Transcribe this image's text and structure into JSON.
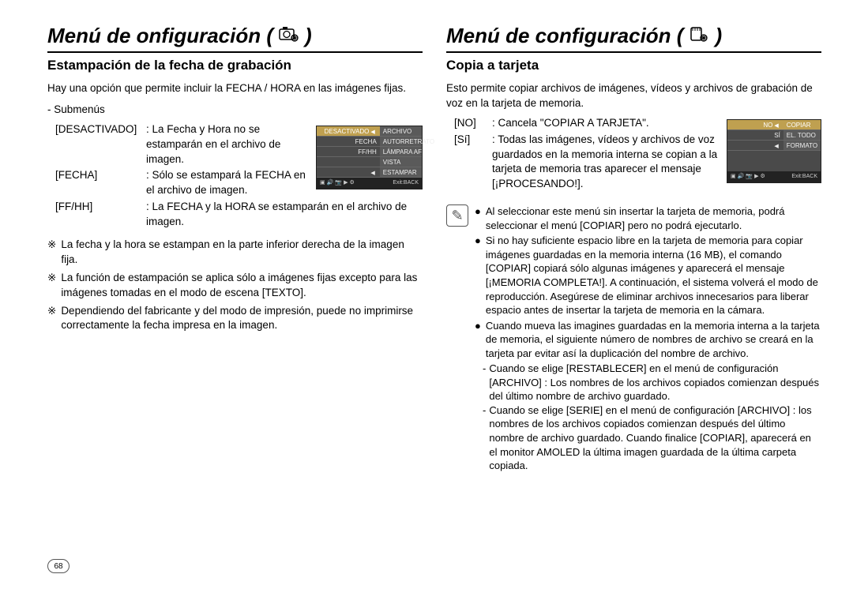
{
  "pageNumber": "68",
  "left": {
    "title_a": "Menú de onfiguración (",
    "title_b": ")",
    "subtitle": "Estampación de la fecha de grabación",
    "intro": "Hay una opción que permite incluir la FECHA / HORA en las imágenes fijas.",
    "submenus_label": "- Submenús",
    "defs": [
      {
        "k": "[DESACTIVADO]",
        "v": ": La Fecha y Hora no se estamparán en el archivo de imagen."
      },
      {
        "k": "[FECHA]",
        "v": ": Sólo se estampará la FECHA en el archivo de imagen."
      },
      {
        "k": "[FF/HH]",
        "v": ": La FECHA y la HORA se estamparán en el archivo de imagen."
      }
    ],
    "notes": [
      "La fecha y la hora se estampan en la parte inferior derecha de la imagen fija.",
      "La función de estampación se aplica sólo a imágenes fijas excepto para las imágenes tomadas en el modo de escena [TEXTO].",
      "Dependiendo del fabricante y del modo de impresión, puede no imprimirse correctamente la fecha impresa en la imagen."
    ],
    "screenshot": {
      "left_items": [
        "DESACTIVADO",
        "FECHA",
        "FF/HH",
        "",
        ""
      ],
      "right_items": [
        "ARCHIVO",
        "AUTORRETRATO",
        "LÁMPARA AF",
        "VISTA RÁPIDA",
        "ESTAMPAR"
      ],
      "left_sel_index": 0,
      "right_sel_index": -1,
      "foot_right": "Exit:BACK"
    }
  },
  "right": {
    "title_a": "Menú de configuración (",
    "title_b": ")",
    "subtitle": "Copia a tarjeta",
    "intro": "Esto permite copiar archivos de imágenes, vídeos y archivos de grabación de voz en la tarjeta de memoria.",
    "defs": [
      {
        "k": "[NO]",
        "v": ": Cancela \"COPIAR A TARJETA\"."
      },
      {
        "k": "[Sí]",
        "v": ": Todas las imágenes, vídeos y archivos de voz guardados en la memoria interna se copian a la tarjeta de memoria tras aparecer el mensaje [¡PROCESANDO!]."
      }
    ],
    "screenshot": {
      "left_items": [
        "NO",
        "SÍ",
        ""
      ],
      "right_items": [
        "COPIAR",
        "EL. TODO",
        "FORMATO"
      ],
      "left_sel_index": 0,
      "right_sel_index": 0,
      "foot_right": "Exit:BACK"
    },
    "notes": [
      "Al seleccionar este menú sin insertar la tarjeta de memoria, podrá seleccionar el menú [COPIAR]  pero no podrá ejecutarlo.",
      "Si no hay suficiente espacio libre en la tarjeta de memoria para copiar imágenes guardadas en la memoria interna (16 MB), el comando [COPIAR] copiará sólo algunas imágenes y aparecerá el mensaje [¡MEMORIA COMPLETA!]. A continuación, el sistema volverá el modo de reproducción. Asegúrese de eliminar archivos innecesarios para liberar espacio antes de insertar la tarjeta de memoria en la cámara.",
      "Cuando mueva las imagines guardadas en la memoria interna a la tarjeta de memoria, el siguiente número de nombres de archivo se creará en la tarjeta par evitar así la duplicación del nombre de archivo."
    ],
    "subnotes": [
      "Cuando se elige [RESTABLECER] en el menú de configuración [ARCHIVO] : Los nombres de los archivos copiados comienzan después del último nombre de archivo guardado.",
      "Cuando se elige [SERIE] en el menú de configuración [ARCHIVO] : los nombres de los archivos copiados comienzan después del último nombre de archivo guardado. Cuando finalice [COPIAR], aparecerá en el monitor AMOLED la última imagen guardada de la última carpeta copiada."
    ]
  }
}
